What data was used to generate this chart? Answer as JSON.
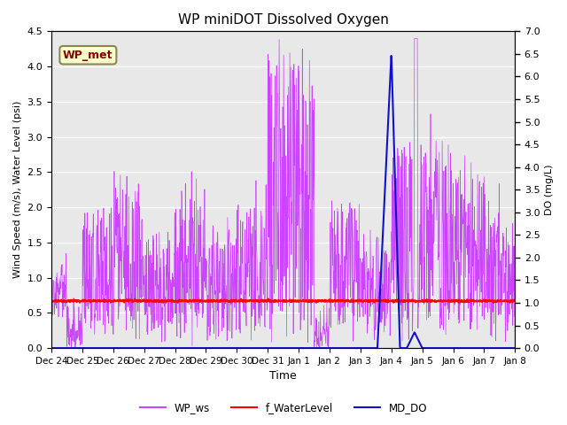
{
  "title": "WP miniDOT Dissolved Oxygen",
  "xlabel": "Time",
  "ylabel_left": "Wind Speed (m/s), Water Level (psi)",
  "ylabel_right": "DO (mg/L)",
  "ylim_left": [
    0,
    4.5
  ],
  "ylim_right": [
    0,
    7.0
  ],
  "xtick_labels": [
    "Dec 24",
    "Dec 25",
    "Dec 26",
    "Dec 27",
    "Dec 28",
    "Dec 29",
    "Dec 30",
    "Dec 31",
    "Jan 1",
    "Jan 2",
    "Jan 3",
    "Jan 4",
    "Jan 5",
    "Jan 6",
    "Jan 7",
    "Jan 8"
  ],
  "yticks_left": [
    0.0,
    0.5,
    1.0,
    1.5,
    2.0,
    2.5,
    3.0,
    3.5,
    4.0,
    4.5
  ],
  "yticks_right": [
    0.0,
    0.5,
    1.0,
    1.5,
    2.0,
    2.5,
    3.0,
    3.5,
    4.0,
    4.5,
    5.0,
    5.5,
    6.0,
    6.5,
    7.0
  ],
  "water_level_value": 0.67,
  "background_color": "#e8e8e8",
  "grid_color": "#ffffff",
  "wp_ws_color": "#cc44ff",
  "f_waterlevel_color": "#ff0000",
  "md_do_color": "#1111cc",
  "legend_label_ws": "WP_ws",
  "legend_label_wl": "f_WaterLevel",
  "legend_label_do": "MD_DO",
  "annotation_text": "WP_met",
  "annotation_bg": "#ffffcc",
  "annotation_border": "#888855",
  "annotation_fg": "#880000",
  "n_days": 15,
  "pts_per_day": 96
}
